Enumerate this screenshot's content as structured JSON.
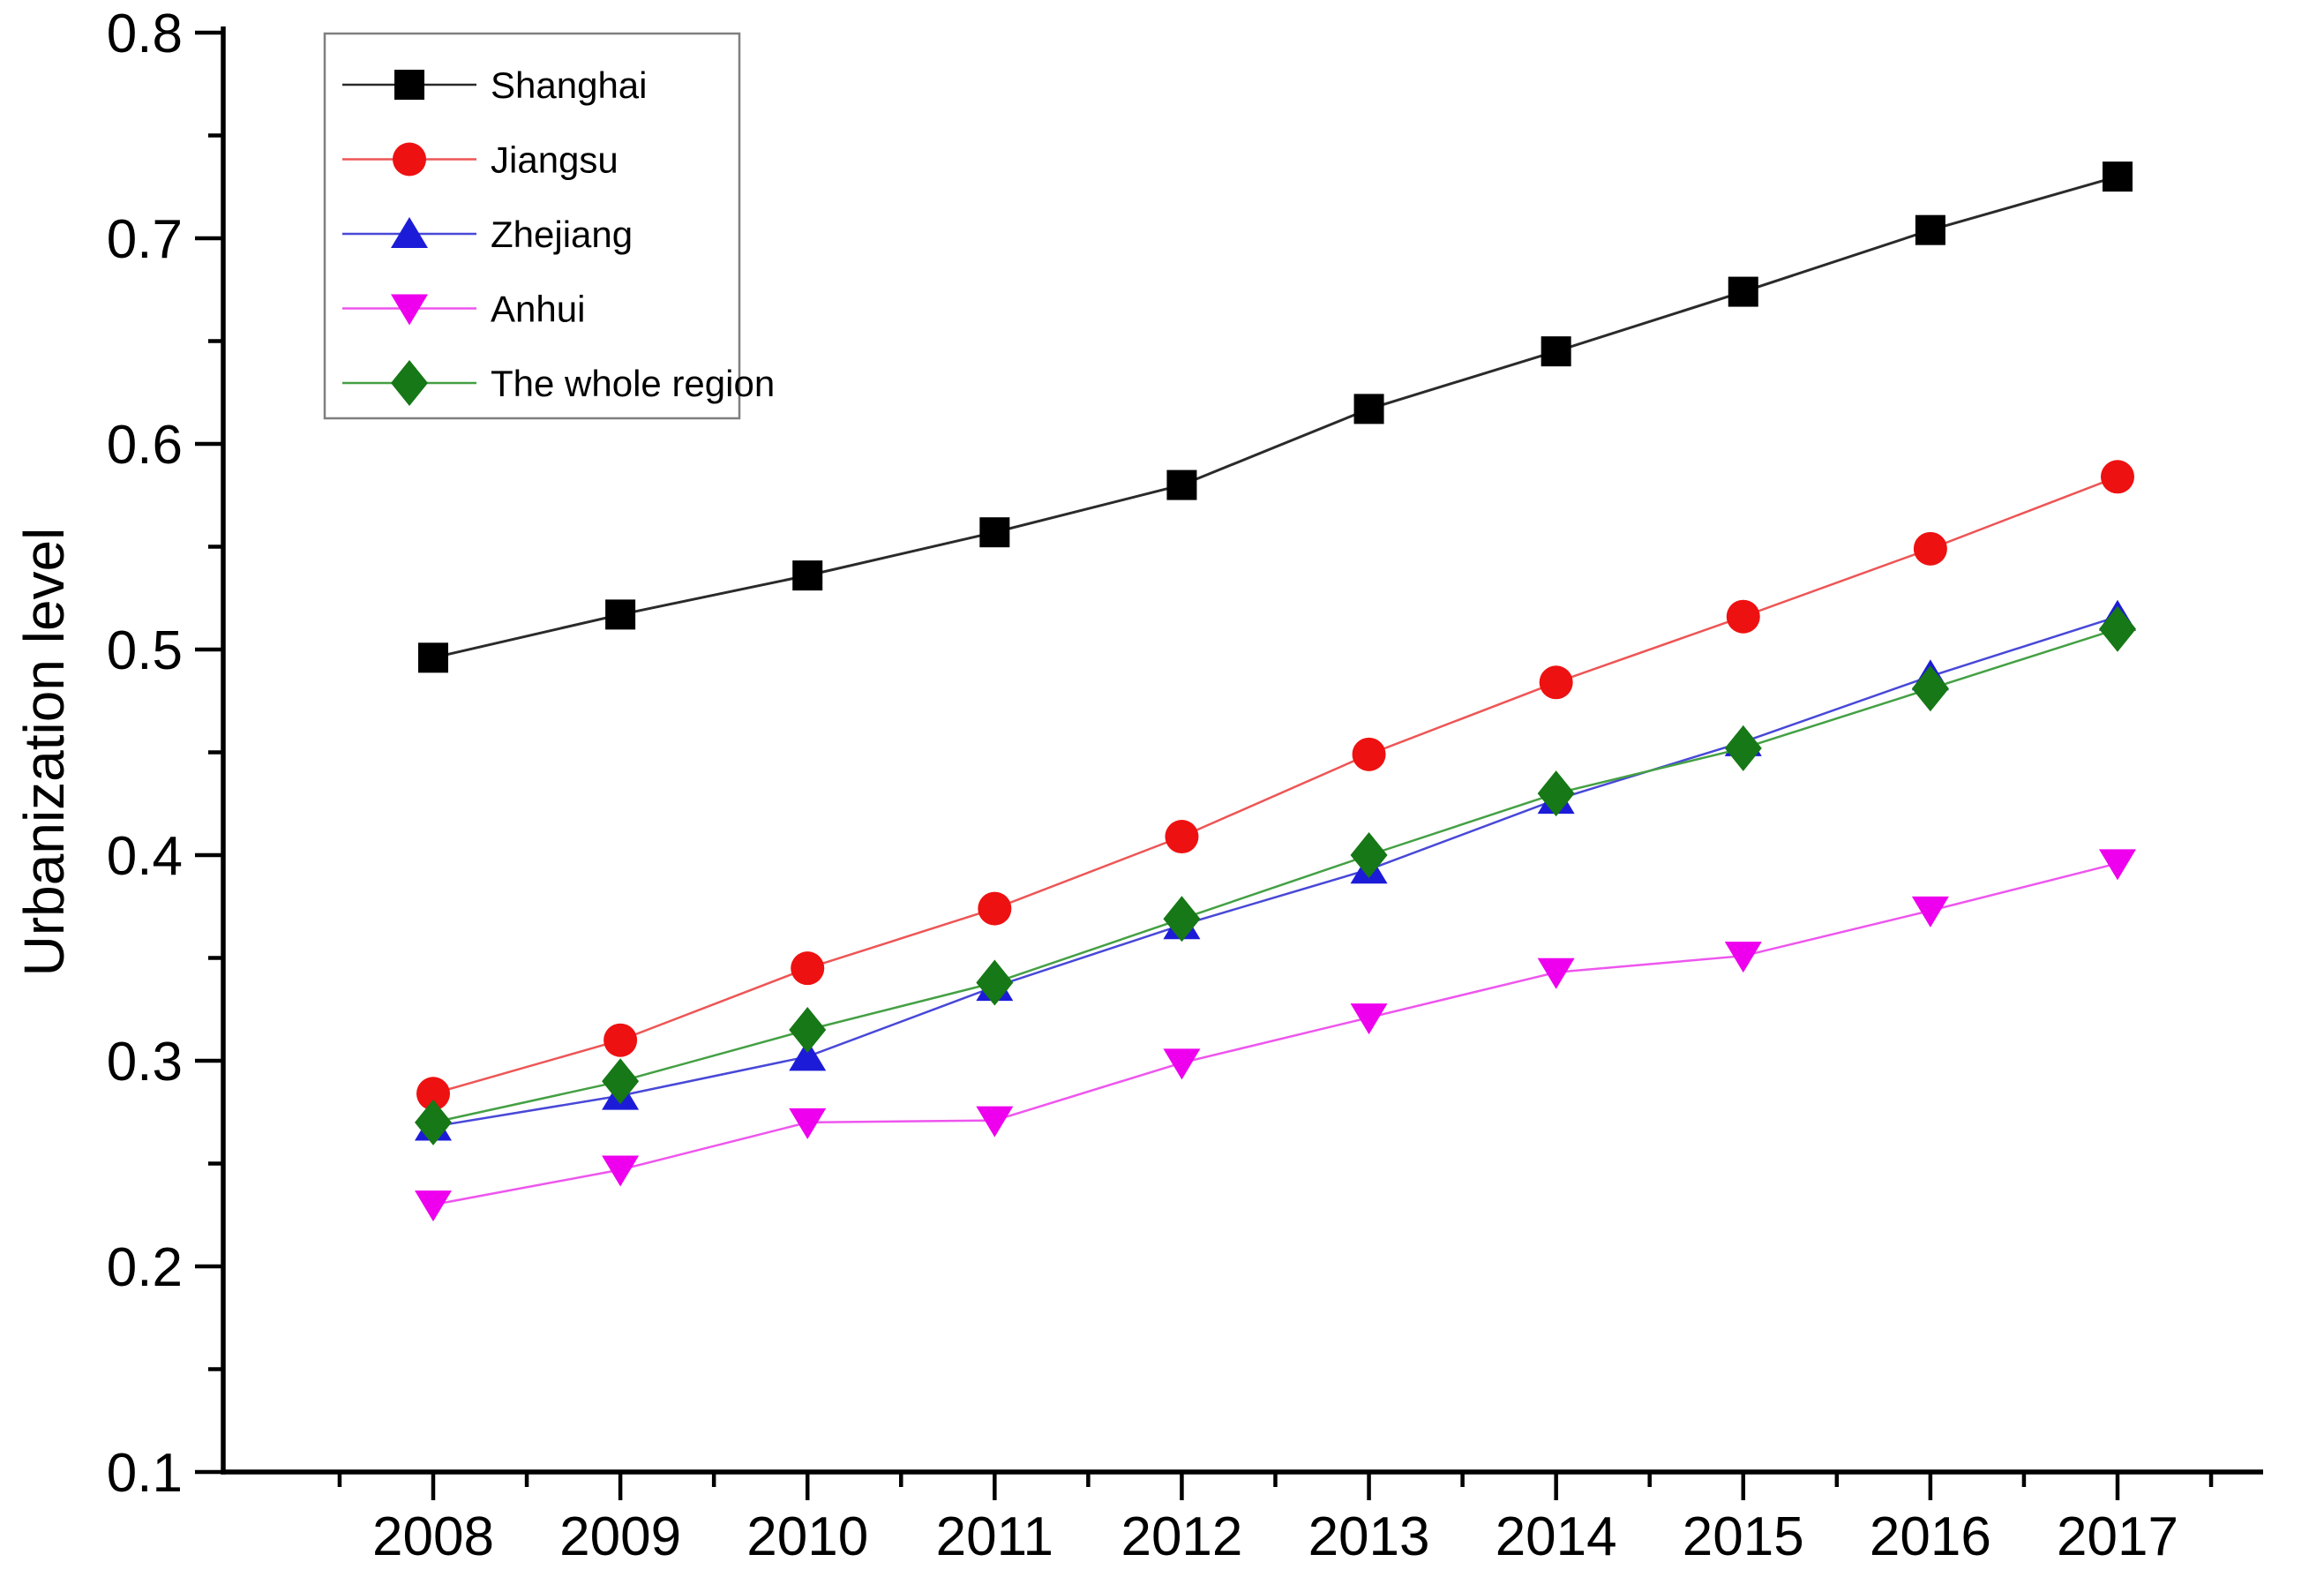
{
  "chart_data": {
    "type": "line",
    "title": "",
    "xlabel": "",
    "ylabel": "Urbanization level",
    "x": [
      2008,
      2009,
      2010,
      2011,
      2012,
      2013,
      2014,
      2015,
      2016,
      2017
    ],
    "x_tick_labels": [
      "2008",
      "2009",
      "2010",
      "2011",
      "2012",
      "2013",
      "2014",
      "2015",
      "2016",
      "2017"
    ],
    "ylim": [
      0.1,
      0.8
    ],
    "y_tick_labels": [
      "0.1",
      "0.2",
      "0.3",
      "0.4",
      "0.5",
      "0.6",
      "0.7",
      "0.8"
    ],
    "y_minor_step": 0.05,
    "grid": false,
    "legend_position": "top-left",
    "series": [
      {
        "name": "Shanghai",
        "marker": "square",
        "marker_color": "#000000",
        "line_color": "#2a2a2a",
        "values": [
          0.496,
          0.517,
          0.536,
          0.557,
          0.58,
          0.617,
          0.645,
          0.674,
          0.704,
          0.73
        ]
      },
      {
        "name": "Jiangsu",
        "marker": "circle",
        "marker_color": "#ee1111",
        "line_color": "#ee5555",
        "values": [
          0.284,
          0.31,
          0.345,
          0.374,
          0.409,
          0.449,
          0.484,
          0.516,
          0.549,
          0.584
        ]
      },
      {
        "name": "Zhejiang",
        "marker": "triangle-up",
        "marker_color": "#1c1cd8",
        "line_color": "#4848d8",
        "values": [
          0.268,
          0.283,
          0.302,
          0.336,
          0.366,
          0.393,
          0.427,
          0.455,
          0.487,
          0.516
        ]
      },
      {
        "name": "Anhui",
        "marker": "triangle-down",
        "marker_color": "#ee00ee",
        "line_color": "#ee55ee",
        "values": [
          0.23,
          0.247,
          0.27,
          0.271,
          0.299,
          0.321,
          0.343,
          0.351,
          0.373,
          0.396
        ]
      },
      {
        "name": "The whole region",
        "marker": "diamond",
        "marker_color": "#167816",
        "line_color": "#44a044",
        "values": [
          0.27,
          0.29,
          0.315,
          0.338,
          0.369,
          0.4,
          0.43,
          0.452,
          0.481,
          0.51
        ]
      }
    ]
  }
}
